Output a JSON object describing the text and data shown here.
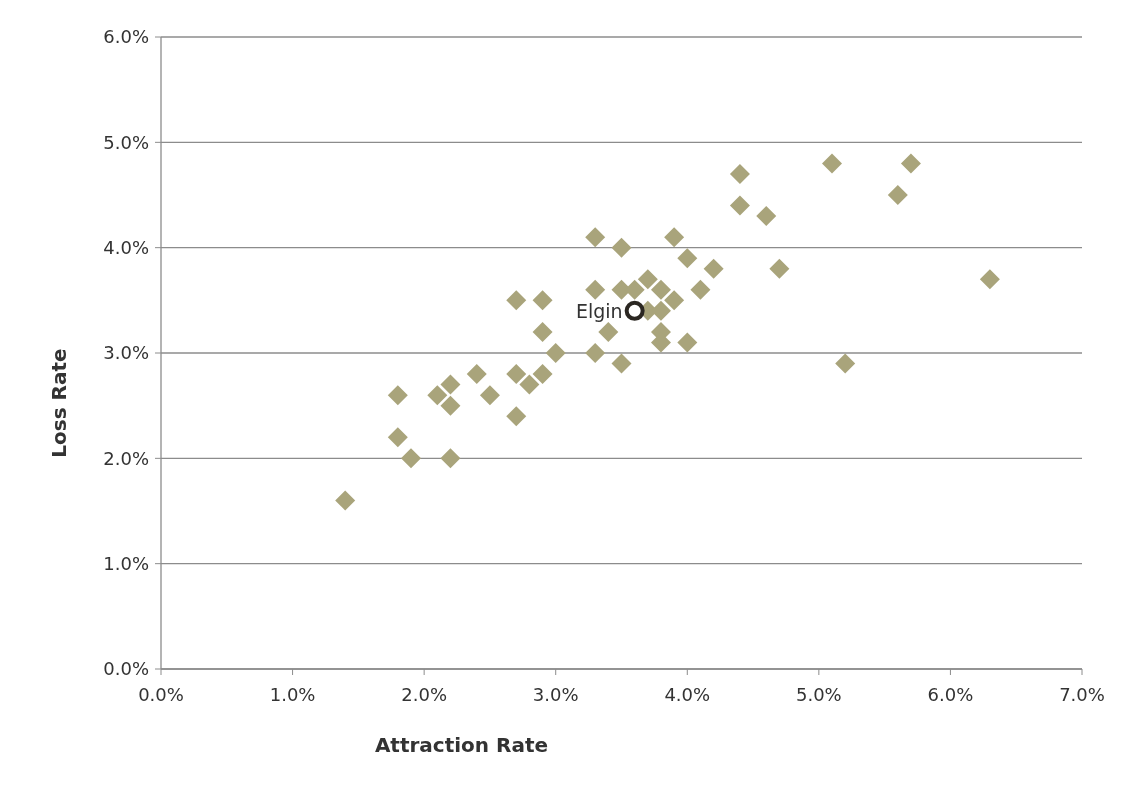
{
  "chart_data": {
    "type": "scatter",
    "xlabel": "Attraction Rate",
    "ylabel": "Loss Rate",
    "xlim": [
      0,
      7
    ],
    "xticks": [
      {
        "value": 0,
        "label": "0.0%"
      },
      {
        "value": 1,
        "label": "1.0%"
      },
      {
        "value": 2,
        "label": "2.0%"
      },
      {
        "value": 3,
        "label": "3.0%"
      },
      {
        "value": 4,
        "label": "4.0%"
      },
      {
        "value": 5,
        "label": "5.0%"
      },
      {
        "value": 6,
        "label": "6.0%"
      },
      {
        "value": 7,
        "label": "7.0%"
      }
    ],
    "ylim": [
      0,
      6
    ],
    "yticks": [
      {
        "value": 0,
        "label": "0.0%"
      },
      {
        "value": 1,
        "label": "1.0%"
      },
      {
        "value": 2,
        "label": "2.0%"
      },
      {
        "value": 3,
        "label": "3.0%"
      },
      {
        "value": 4,
        "label": "4.0%"
      },
      {
        "value": 5,
        "label": "5.0%"
      },
      {
        "value": 6,
        "label": "6.0%"
      }
    ],
    "grid": "y",
    "series": [
      {
        "color": "#a9a47b",
        "marker": "diamond",
        "x": [
          1.4,
          1.8,
          1.8,
          1.9,
          2.1,
          2.2,
          2.2,
          2.2,
          2.4,
          2.5,
          2.7,
          2.7,
          2.7,
          2.8,
          2.9,
          2.9,
          2.9,
          3.0,
          3.3,
          3.3,
          3.3,
          3.4,
          3.5,
          3.5,
          3.5,
          3.6,
          3.7,
          3.7,
          3.8,
          3.8,
          3.8,
          3.8,
          3.9,
          3.9,
          4.0,
          4.0,
          4.1,
          4.2,
          4.4,
          4.4,
          4.6,
          4.7,
          5.1,
          5.2,
          5.6,
          5.7,
          6.3
        ],
        "values": [
          1.6,
          2.6,
          2.2,
          2.0,
          2.6,
          2.7,
          2.5,
          2.0,
          2.8,
          2.6,
          3.5,
          2.8,
          2.4,
          2.7,
          3.5,
          3.2,
          2.8,
          3.0,
          4.1,
          3.6,
          3.0,
          3.2,
          4.0,
          3.6,
          2.9,
          3.6,
          3.7,
          3.4,
          3.6,
          3.4,
          3.2,
          3.1,
          4.1,
          3.5,
          3.9,
          3.1,
          3.6,
          3.8,
          4.7,
          4.4,
          4.3,
          3.8,
          4.8,
          2.9,
          4.5,
          4.8,
          3.7
        ]
      },
      {
        "name": "Elgin",
        "color": "#2b2722",
        "marker": "circle",
        "x": [
          3.6
        ],
        "values": [
          3.4
        ]
      }
    ]
  }
}
